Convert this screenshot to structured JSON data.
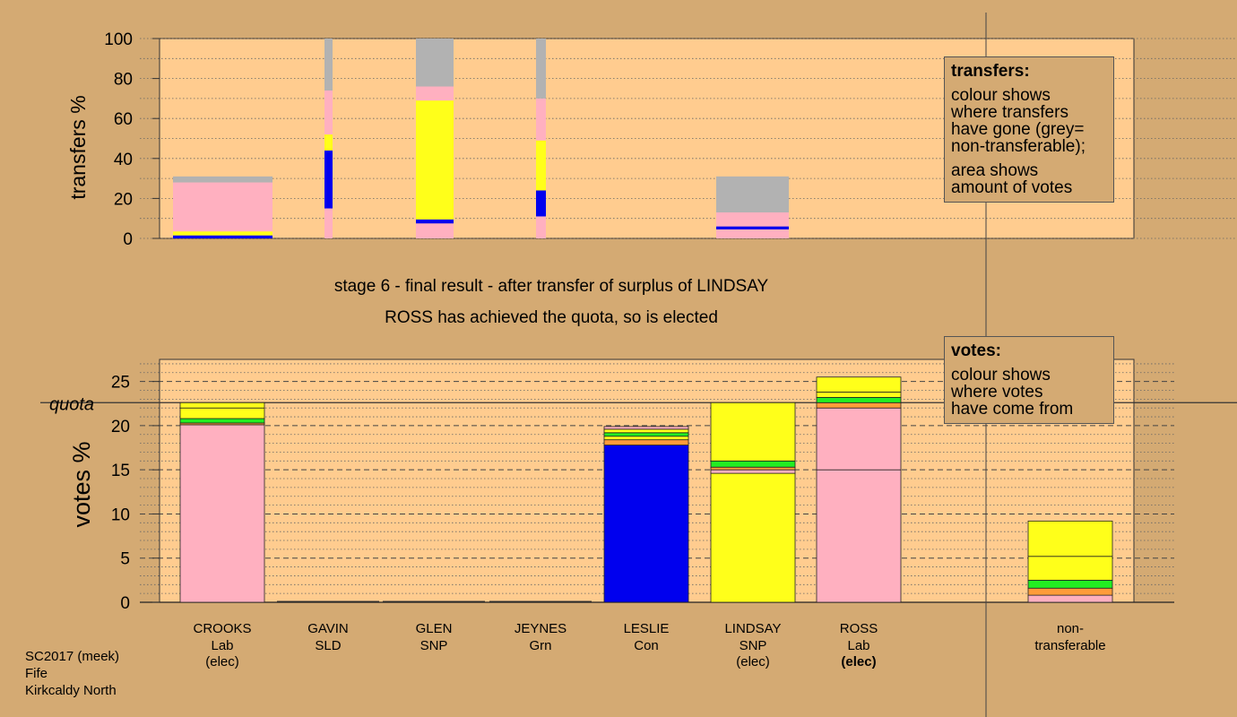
{
  "colors": {
    "Lab": "#ffb0c0",
    "SNP": "#ffff1a",
    "Con": "#0000ee",
    "SLD": "#ff9c3a",
    "Grn": "#22ee22",
    "nontransferable": "#b2b2b2",
    "background": "#d4aa73",
    "plot_bg": "#ffcc8f"
  },
  "chart_data": [
    {
      "type": "bar",
      "stacked": true,
      "ylabel": "transfers %",
      "ylim": [
        0,
        100
      ],
      "yticks": [
        0,
        20,
        40,
        60,
        80,
        100
      ],
      "grid": true,
      "columns": [
        {
          "candidate": "CROOKS",
          "segments": [
            {
              "party": "Con",
              "from": 0,
              "to": 1.5
            },
            {
              "party": "SNP",
              "from": 1.5,
              "to": 3.5
            },
            {
              "party": "Lab",
              "from": 3.5,
              "to": 28
            },
            {
              "party": "nontransferable",
              "from": 28,
              "to": 31
            }
          ]
        },
        {
          "candidate": "GAVIN",
          "segments": [
            {
              "party": "Lab",
              "from": 0,
              "to": 15
            },
            {
              "party": "Con",
              "from": 15,
              "to": 44
            },
            {
              "party": "SNP",
              "from": 44,
              "to": 52
            },
            {
              "party": "Lab",
              "from": 52,
              "to": 74
            },
            {
              "party": "nontransferable",
              "from": 74,
              "to": 100
            }
          ]
        },
        {
          "candidate": "GLEN",
          "segments": [
            {
              "party": "Lab",
              "from": 0,
              "to": 7.5
            },
            {
              "party": "Con",
              "from": 7.5,
              "to": 9.5
            },
            {
              "party": "SNP",
              "from": 9.5,
              "to": 69
            },
            {
              "party": "Lab",
              "from": 69,
              "to": 76
            },
            {
              "party": "nontransferable",
              "from": 76,
              "to": 100
            }
          ]
        },
        {
          "candidate": "JEYNES",
          "segments": [
            {
              "party": "Lab",
              "from": 0,
              "to": 11
            },
            {
              "party": "Con",
              "from": 11,
              "to": 24
            },
            {
              "party": "SNP",
              "from": 24,
              "to": 49
            },
            {
              "party": "Lab",
              "from": 49,
              "to": 70
            },
            {
              "party": "nontransferable",
              "from": 70,
              "to": 100
            }
          ]
        },
        {
          "candidate": "LESLIE",
          "segments": []
        },
        {
          "candidate": "LINDSAY",
          "segments": [
            {
              "party": "Lab",
              "from": 0,
              "to": 4.5
            },
            {
              "party": "Con",
              "from": 4.5,
              "to": 6
            },
            {
              "party": "Lab",
              "from": 6,
              "to": 13
            },
            {
              "party": "nontransferable",
              "from": 13,
              "to": 31
            }
          ]
        },
        {
          "candidate": "ROSS",
          "segments": []
        }
      ]
    },
    {
      "type": "bar",
      "stacked": true,
      "ylabel": "votes %",
      "ylim": [
        0,
        27.5
      ],
      "yticks": [
        0,
        5,
        10,
        15,
        20,
        25
      ],
      "quota": 22.6,
      "quota_label": "quota",
      "grid": true,
      "categories": [
        {
          "name": "CROOKS",
          "party": "Lab",
          "status": "(elec)",
          "status_bold": false
        },
        {
          "name": "GAVIN",
          "party": "SLD",
          "status": "",
          "status_bold": false
        },
        {
          "name": "GLEN",
          "party": "SNP",
          "status": "",
          "status_bold": false
        },
        {
          "name": "JEYNES",
          "party": "Grn",
          "status": "",
          "status_bold": false
        },
        {
          "name": "LESLIE",
          "party": "Con",
          "status": "",
          "status_bold": false
        },
        {
          "name": "LINDSAY",
          "party": "SNP",
          "status": "(elec)",
          "status_bold": false
        },
        {
          "name": "ROSS",
          "party": "Lab",
          "status": "(elec)",
          "status_bold": true
        },
        {
          "name": "non-",
          "party": "transferable",
          "status": "",
          "status_bold": false
        }
      ],
      "stacks": [
        [
          {
            "party": "Lab",
            "v": 20.1
          },
          {
            "party": "SLD",
            "v": 0.2
          },
          {
            "party": "Grn",
            "v": 0.5
          },
          {
            "party": "SNP",
            "v": 1.2
          },
          {
            "party": "SNP",
            "v": 0.6
          }
        ],
        [],
        [],
        [],
        [
          {
            "party": "Con",
            "v": 17.8
          },
          {
            "party": "SLD",
            "v": 0.6
          },
          {
            "party": "SNP",
            "v": 0.4
          },
          {
            "party": "Grn",
            "v": 0.4
          },
          {
            "party": "SNP",
            "v": 0.4
          },
          {
            "party": "Lab",
            "v": 0.3
          }
        ],
        [
          {
            "party": "SNP",
            "v": 14.6
          },
          {
            "party": "Lab",
            "v": 0.4
          },
          {
            "party": "SLD",
            "v": 0.3
          },
          {
            "party": "Grn",
            "v": 0.7
          },
          {
            "party": "SNP",
            "v": 6.6
          }
        ],
        [
          {
            "party": "Lab",
            "v": 15.0
          },
          {
            "party": "Lab",
            "v": 7.0
          },
          {
            "party": "SLD",
            "v": 0.6
          },
          {
            "party": "Grn",
            "v": 0.6
          },
          {
            "party": "SNP",
            "v": 0.6
          },
          {
            "party": "SNP",
            "v": 1.7
          }
        ],
        [
          {
            "party": "Lab",
            "v": 0.8
          },
          {
            "party": "SLD",
            "v": 0.8
          },
          {
            "party": "Grn",
            "v": 0.9
          },
          {
            "party": "SNP",
            "v": 2.7
          },
          {
            "party": "SNP",
            "v": 4.0
          }
        ]
      ]
    }
  ],
  "captions": {
    "stage": "stage 6 - final result - after transfer of surplus of LINDSAY",
    "elected": "ROSS has achieved the quota, so is elected"
  },
  "legend_transfers": {
    "title": "transfers:",
    "line1": "colour shows",
    "line2": "where transfers",
    "line3": "have gone (grey=",
    "line4": "non-transferable);",
    "line5": "area shows",
    "line6": "amount of votes"
  },
  "legend_votes": {
    "title": "votes:",
    "line1": "colour shows",
    "line2": "where votes",
    "line3": "have come from"
  },
  "footer": {
    "line1": "SC2017 (meek)",
    "line2": "Fife",
    "line3": "Kirkcaldy North"
  }
}
